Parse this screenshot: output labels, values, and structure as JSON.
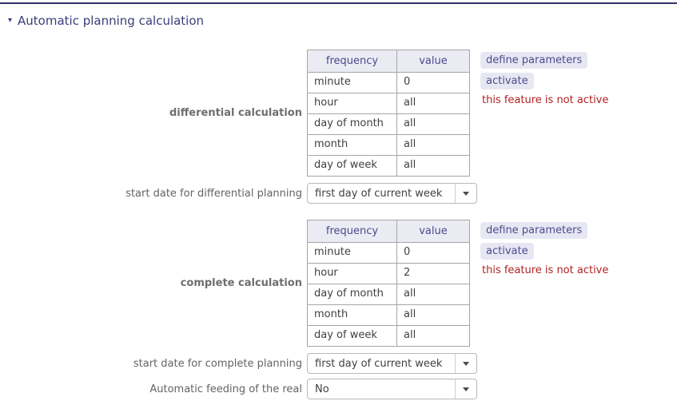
{
  "header": {
    "title": "Automatic planning calculation",
    "collapse_icon": "collapse-triangle-down"
  },
  "sections": [
    {
      "label": "differential calculation",
      "table": {
        "headers": [
          "frequency",
          "value"
        ],
        "rows": [
          [
            "minute",
            "0"
          ],
          [
            "hour",
            "all"
          ],
          [
            "day of month",
            "all"
          ],
          [
            "month",
            "all"
          ],
          [
            "day of week",
            "all"
          ]
        ]
      },
      "actions": {
        "define_label": "define parameters",
        "activate_label": "activate",
        "status": "this feature is not active"
      },
      "start_row": {
        "label": "start date for differential planning",
        "value": "first day of current week"
      }
    },
    {
      "label": "complete calculation",
      "table": {
        "headers": [
          "frequency",
          "value"
        ],
        "rows": [
          [
            "minute",
            "0"
          ],
          [
            "hour",
            "2"
          ],
          [
            "day of month",
            "all"
          ],
          [
            "month",
            "all"
          ],
          [
            "day of week",
            "all"
          ]
        ]
      },
      "actions": {
        "define_label": "define parameters",
        "activate_label": "activate",
        "status": "this feature is not active"
      },
      "start_row": {
        "label": "start date for complete planning",
        "value": "first day of current week"
      }
    }
  ],
  "feeding_row": {
    "label": "Automatic feeding of the real",
    "value": "No"
  },
  "colors": {
    "accent_navy": "#3c3c78",
    "top_rule": "#32326a",
    "table_header_bg": "#ebebf4",
    "table_header_text": "#4a4a8c",
    "table_border": "#a6a6a6",
    "pill_bg": "#e7e7f3",
    "pill_text": "#4c4c8e",
    "status_red": "#b22222",
    "label_gray": "#636363"
  }
}
